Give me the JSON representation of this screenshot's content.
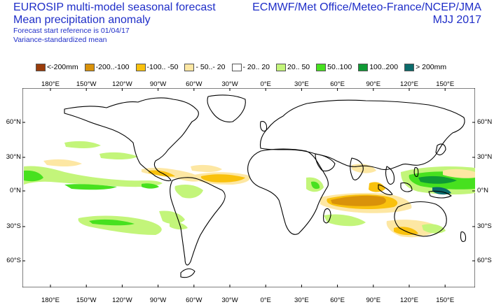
{
  "header": {
    "title_line1": "EUROSIP multi-model seasonal forecast",
    "title_line2": "Mean precipitation anomaly",
    "forecast_ref": "Forecast start reference is 01/04/17",
    "variance_note": "Variance-standardized mean",
    "centres": "ECMWF/Met Office/Meteo-France/NCEP/JMA",
    "season": "MJJ 2017"
  },
  "colors": {
    "title_text": "#1f2ec8",
    "land_outline": "#000000"
  },
  "legend": [
    {
      "label": "<-200mm",
      "color": "#9a3c0a"
    },
    {
      "label": "-200..-100",
      "color": "#d9920a"
    },
    {
      "label": "-100.. -50",
      "color": "#f9c10d"
    },
    {
      "label": "- 50..- 20",
      "color": "#fde7a3"
    },
    {
      "label": "- 20.. 20",
      "color": "#ffffff"
    },
    {
      "label": "20.. 50",
      "color": "#c3f57a"
    },
    {
      "label": "50..100",
      "color": "#47e11f"
    },
    {
      "label": "100..200",
      "color": "#0f9a34"
    },
    {
      "label": "> 200mm",
      "color": "#0b6b6b"
    }
  ],
  "map": {
    "lon_labels_top": [
      "180°E",
      "150°W",
      "120°W",
      "90°W",
      "60°W",
      "30°W",
      "0°E",
      "30°E",
      "60°E",
      "90°E",
      "120°E",
      "150°E"
    ],
    "lon_labels_bottom": [
      "180°E",
      "150°W",
      "120°W",
      "90°W",
      "60°W",
      "30°W",
      "0°E",
      "30°E",
      "60°E",
      "90°E",
      "120°E",
      "150°E"
    ],
    "lat_labels_left": [
      "60°N",
      "30°N",
      "0°N",
      "30°S",
      "60°S"
    ],
    "lat_labels_right": [
      "60°N",
      "30°N",
      "0°N",
      "30°S",
      "60°S"
    ]
  }
}
